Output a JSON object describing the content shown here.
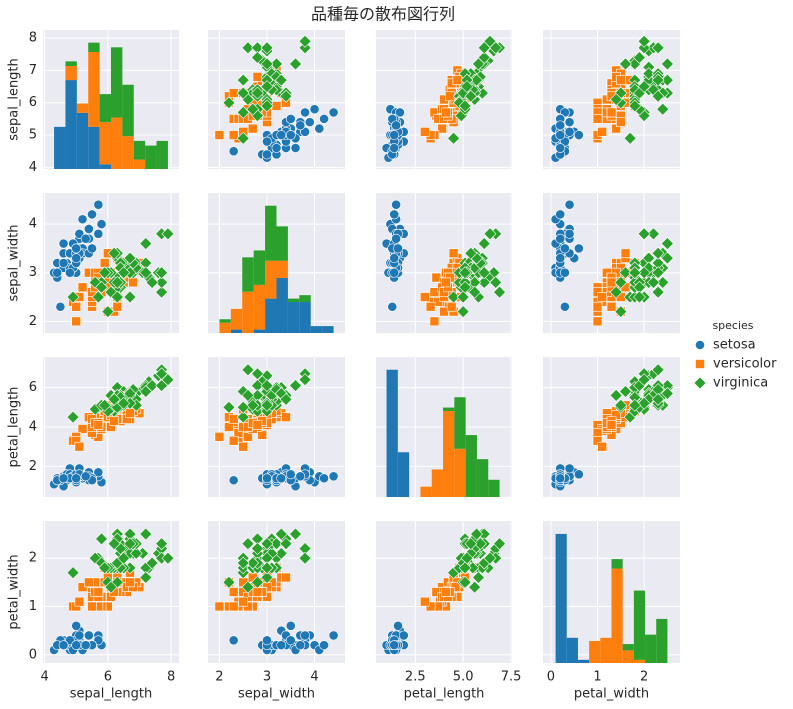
{
  "chart_data": {
    "type": "pairplot",
    "title": "品種毎の散布図行列",
    "legend_title": "species",
    "legend": "right",
    "grid": true,
    "variables": [
      {
        "name": "sepal_length",
        "lim": [
          3.95,
          8.25
        ],
        "xticks": [
          4,
          6,
          8
        ],
        "yticks": [
          4,
          5,
          6,
          7,
          8
        ],
        "bins": [
          4.3,
          4.66,
          5.02,
          5.38,
          5.74,
          6.1,
          6.46,
          6.82,
          7.18,
          7.54,
          7.9
        ]
      },
      {
        "name": "sepal_width",
        "lim": [
          1.76,
          4.64
        ],
        "xticks": [
          2,
          3,
          4
        ],
        "yticks": [
          2,
          3,
          4
        ],
        "bins": [
          2.0,
          2.24,
          2.48,
          2.72,
          2.96,
          3.2,
          3.44,
          3.68,
          3.92,
          4.16,
          4.4
        ]
      },
      {
        "name": "petal_length",
        "lim": [
          0.45,
          7.55
        ],
        "xticks": [
          2.5,
          {
            "value": 5,
            "label": "5.0"
          },
          7.5
        ],
        "yticks": [
          2,
          4,
          6
        ],
        "bins": [
          1.0,
          1.59,
          2.18,
          2.77,
          3.36,
          3.95,
          4.54,
          5.13,
          5.72,
          6.31,
          6.9
        ]
      },
      {
        "name": "petal_width",
        "lim": [
          -0.17,
          2.77
        ],
        "xticks": [
          0,
          1,
          2
        ],
        "yticks": [
          0,
          1,
          2
        ],
        "bins": [
          0.1,
          0.34,
          0.58,
          0.82,
          1.06,
          1.3,
          1.54,
          1.78,
          2.02,
          2.26,
          2.5
        ]
      }
    ],
    "series": [
      {
        "name": "setosa",
        "color": "#1f77b4",
        "marker": "circle",
        "values": [
          [
            5.1,
            4.9,
            4.7,
            4.6,
            5.0,
            5.4,
            4.6,
            5.0,
            4.4,
            4.9,
            5.4,
            4.8,
            4.8,
            4.3,
            5.8,
            5.7,
            5.4,
            5.1,
            5.7,
            5.1,
            5.4,
            5.1,
            4.6,
            5.1,
            4.8,
            5.0,
            5.0,
            5.2,
            5.2,
            4.7,
            4.8,
            5.4,
            5.2,
            5.5,
            4.9,
            5.0,
            5.5,
            4.9,
            4.4,
            5.1,
            5.0,
            4.5,
            4.4,
            5.0,
            5.1,
            4.8,
            5.1,
            4.6,
            5.3,
            5.0
          ],
          [
            3.5,
            3.0,
            3.2,
            3.1,
            3.6,
            3.9,
            3.4,
            3.4,
            2.9,
            3.1,
            3.7,
            3.4,
            3.0,
            3.0,
            4.0,
            4.4,
            3.9,
            3.5,
            3.8,
            3.8,
            3.4,
            3.7,
            3.6,
            3.3,
            3.4,
            3.0,
            3.4,
            3.5,
            3.4,
            3.2,
            3.1,
            3.4,
            4.1,
            4.2,
            3.1,
            3.2,
            3.5,
            3.6,
            3.0,
            3.4,
            3.5,
            2.3,
            3.2,
            3.5,
            3.8,
            3.0,
            3.8,
            3.2,
            3.7,
            3.3
          ],
          [
            1.4,
            1.4,
            1.3,
            1.5,
            1.4,
            1.7,
            1.4,
            1.5,
            1.4,
            1.5,
            1.5,
            1.6,
            1.4,
            1.1,
            1.2,
            1.5,
            1.3,
            1.4,
            1.7,
            1.5,
            1.7,
            1.5,
            1.0,
            1.7,
            1.9,
            1.6,
            1.6,
            1.5,
            1.4,
            1.6,
            1.6,
            1.5,
            1.5,
            1.4,
            1.5,
            1.2,
            1.3,
            1.4,
            1.3,
            1.5,
            1.3,
            1.3,
            1.3,
            1.6,
            1.9,
            1.4,
            1.6,
            1.4,
            1.5,
            1.4
          ],
          [
            0.2,
            0.2,
            0.2,
            0.2,
            0.2,
            0.4,
            0.3,
            0.2,
            0.2,
            0.1,
            0.2,
            0.2,
            0.1,
            0.1,
            0.2,
            0.4,
            0.4,
            0.3,
            0.3,
            0.3,
            0.2,
            0.4,
            0.2,
            0.5,
            0.2,
            0.2,
            0.4,
            0.2,
            0.2,
            0.2,
            0.2,
            0.4,
            0.1,
            0.2,
            0.2,
            0.2,
            0.2,
            0.1,
            0.2,
            0.2,
            0.3,
            0.3,
            0.2,
            0.6,
            0.4,
            0.3,
            0.2,
            0.2,
            0.2,
            0.2
          ]
        ],
        "hist_counts": [
          [
            9,
            19,
            12,
            9,
            1,
            0,
            0,
            0,
            0,
            0
          ],
          [
            0,
            1,
            0,
            1,
            10,
            16,
            9,
            9,
            2,
            2
          ],
          [
            37,
            13,
            0,
            0,
            0,
            0,
            0,
            0,
            0,
            0
          ],
          [
            41,
            8,
            1,
            0,
            0,
            0,
            0,
            0,
            0,
            0
          ]
        ]
      },
      {
        "name": "versicolor",
        "color": "#ff7f0e",
        "marker": "square",
        "values": [
          [
            7.0,
            6.4,
            6.9,
            5.5,
            6.5,
            5.7,
            6.3,
            4.9,
            6.6,
            5.2,
            5.0,
            5.9,
            6.0,
            6.1,
            5.6,
            6.7,
            5.6,
            5.8,
            6.2,
            5.6,
            5.9,
            6.1,
            6.3,
            6.1,
            6.4,
            6.6,
            6.8,
            6.7,
            6.0,
            5.7,
            5.5,
            5.5,
            5.8,
            6.0,
            5.4,
            6.0,
            6.7,
            6.3,
            5.6,
            5.5,
            5.5,
            6.1,
            5.8,
            5.0,
            5.6,
            5.7,
            5.7,
            6.2,
            5.1,
            5.7
          ],
          [
            3.2,
            3.2,
            3.1,
            2.3,
            2.8,
            2.8,
            3.3,
            2.4,
            2.9,
            2.7,
            2.0,
            3.0,
            2.2,
            2.9,
            2.9,
            3.1,
            3.0,
            2.7,
            2.2,
            2.5,
            3.2,
            2.8,
            2.5,
            2.8,
            2.9,
            3.0,
            2.8,
            3.0,
            2.9,
            2.6,
            2.4,
            2.4,
            2.7,
            2.7,
            3.0,
            3.4,
            3.1,
            2.3,
            3.0,
            2.5,
            2.6,
            3.0,
            2.6,
            2.3,
            2.7,
            3.0,
            2.9,
            2.9,
            2.5,
            2.8
          ],
          [
            4.7,
            4.5,
            4.9,
            4.0,
            4.6,
            4.5,
            4.7,
            3.3,
            4.6,
            3.9,
            3.5,
            4.2,
            4.0,
            4.7,
            3.6,
            4.4,
            4.5,
            4.1,
            4.5,
            3.9,
            4.8,
            4.0,
            4.9,
            4.7,
            4.3,
            4.4,
            4.8,
            5.0,
            4.5,
            3.5,
            3.8,
            3.7,
            3.9,
            5.1,
            4.5,
            4.5,
            4.7,
            4.4,
            4.1,
            4.0,
            4.4,
            4.6,
            4.0,
            3.3,
            4.2,
            4.2,
            4.2,
            4.3,
            3.0,
            4.1
          ],
          [
            1.4,
            1.5,
            1.5,
            1.3,
            1.5,
            1.3,
            1.6,
            1.0,
            1.3,
            1.4,
            1.0,
            1.5,
            1.0,
            1.4,
            1.3,
            1.4,
            1.5,
            1.0,
            1.5,
            1.1,
            1.8,
            1.3,
            1.5,
            1.2,
            1.3,
            1.4,
            1.4,
            1.7,
            1.5,
            1.0,
            1.1,
            1.0,
            1.2,
            1.6,
            1.5,
            1.6,
            1.5,
            1.3,
            1.3,
            1.3,
            1.2,
            1.4,
            1.2,
            1.0,
            1.3,
            1.2,
            1.3,
            1.3,
            1.1,
            1.3
          ]
        ],
        "hist_counts": [
          [
            0,
            3,
            2,
            16,
            9,
            11,
            7,
            2,
            0,
            0
          ],
          [
            3,
            6,
            12,
            13,
            11,
            5,
            0,
            0,
            0,
            0
          ],
          [
            0,
            0,
            0,
            3,
            8,
            25,
            14,
            0,
            0,
            0
          ],
          [
            0,
            0,
            0,
            7,
            8,
            30,
            4,
            1,
            0,
            0
          ]
        ]
      },
      {
        "name": "virginica",
        "color": "#2ca02c",
        "marker": "diamond",
        "values": [
          [
            6.3,
            5.8,
            7.1,
            6.3,
            6.5,
            7.6,
            4.9,
            7.3,
            6.7,
            7.2,
            6.5,
            6.4,
            6.8,
            5.7,
            5.8,
            6.4,
            6.5,
            7.7,
            7.7,
            6.0,
            6.9,
            5.6,
            7.7,
            6.3,
            6.7,
            7.2,
            6.2,
            6.1,
            6.4,
            7.2,
            7.4,
            7.9,
            6.4,
            6.3,
            6.1,
            7.7,
            6.3,
            6.4,
            6.0,
            6.9,
            6.7,
            6.9,
            5.8,
            6.8,
            6.7,
            6.7,
            6.3,
            6.5,
            6.2,
            5.9
          ],
          [
            3.3,
            2.7,
            3.0,
            2.9,
            3.0,
            3.0,
            2.5,
            2.9,
            2.5,
            3.6,
            3.2,
            2.7,
            3.0,
            2.5,
            2.8,
            3.2,
            3.0,
            3.8,
            2.6,
            2.2,
            3.2,
            2.8,
            2.8,
            2.7,
            3.3,
            3.2,
            2.8,
            3.0,
            2.8,
            3.0,
            2.8,
            3.8,
            2.8,
            2.8,
            2.6,
            3.0,
            3.4,
            3.1,
            3.0,
            3.1,
            3.1,
            3.1,
            2.7,
            3.2,
            3.3,
            3.0,
            2.5,
            3.0,
            3.4,
            3.0
          ],
          [
            6.0,
            5.1,
            5.9,
            5.6,
            5.8,
            6.6,
            4.5,
            6.3,
            5.8,
            6.1,
            5.1,
            5.3,
            5.5,
            5.0,
            5.1,
            5.3,
            5.5,
            6.7,
            6.9,
            5.0,
            5.7,
            4.9,
            6.7,
            4.9,
            5.7,
            6.0,
            4.8,
            4.9,
            5.6,
            5.8,
            6.1,
            6.4,
            5.6,
            5.1,
            5.6,
            6.1,
            5.6,
            5.5,
            4.8,
            5.4,
            5.6,
            5.1,
            5.1,
            5.9,
            5.7,
            5.2,
            5.0,
            5.2,
            5.4,
            5.1
          ],
          [
            2.5,
            1.9,
            2.1,
            1.8,
            2.2,
            2.1,
            1.7,
            1.8,
            1.8,
            2.5,
            2.0,
            1.9,
            2.1,
            2.0,
            2.4,
            2.3,
            1.8,
            2.2,
            2.3,
            1.5,
            2.3,
            2.0,
            2.0,
            1.8,
            2.1,
            1.8,
            1.8,
            1.8,
            2.1,
            1.6,
            1.9,
            2.0,
            2.2,
            1.5,
            1.4,
            2.3,
            2.4,
            1.8,
            1.8,
            2.1,
            2.4,
            2.3,
            1.9,
            2.3,
            2.5,
            2.3,
            1.9,
            2.0,
            2.3,
            1.8
          ]
        ],
        "hist_counts": [
          [
            0,
            1,
            0,
            2,
            6,
            15,
            11,
            4,
            5,
            6
          ],
          [
            1,
            0,
            10,
            10,
            16,
            10,
            1,
            2,
            0,
            0
          ],
          [
            0,
            0,
            0,
            0,
            0,
            1,
            15,
            18,
            11,
            5
          ],
          [
            0,
            0,
            0,
            0,
            0,
            3,
            2,
            22,
            9,
            14
          ]
        ]
      }
    ]
  }
}
